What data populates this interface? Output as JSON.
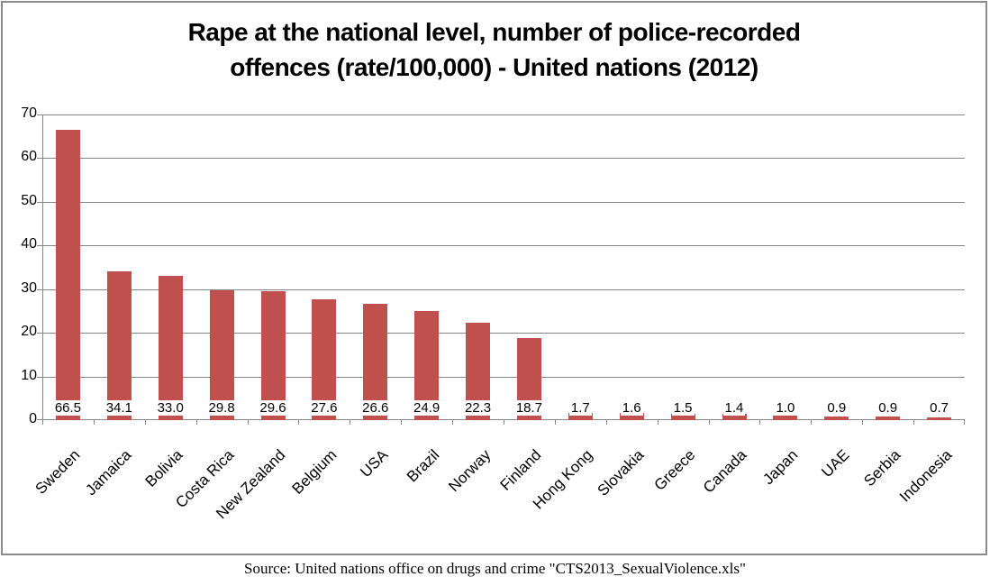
{
  "title": {
    "line1": "Rape at the national level, number of police-recorded",
    "line2": "offences (rate/100,000) - United nations (2012)"
  },
  "source": "Source: United nations office on drugs and crime \"CTS2013_SexualViolence.xls\"",
  "chart_data": {
    "type": "bar",
    "title": "Rape at the national level, number of police-recorded offences (rate/100,000) - United nations (2012)",
    "categories": [
      "Sweden",
      "Jamaica",
      "Bolivia",
      "Costa Rica",
      "New Zealand",
      "Belgium",
      "USA",
      "Brazil",
      "Norway",
      "Finland",
      "Hong Kong",
      "Slovakia",
      "Greece",
      "Canada",
      "Japan",
      "UAE",
      "Serbia",
      "Indonesia"
    ],
    "values": [
      66.5,
      34.1,
      33.0,
      29.8,
      29.6,
      27.6,
      26.6,
      24.9,
      22.3,
      18.7,
      1.7,
      1.6,
      1.5,
      1.4,
      1.0,
      0.9,
      0.9,
      0.7
    ],
    "value_labels": [
      "66.5",
      "34.1",
      "33.0",
      "29.8",
      "29.6",
      "27.6",
      "26.6",
      "24.9",
      "22.3",
      "18.7",
      "1.7",
      "1.6",
      "1.5",
      "1.4",
      "1.0",
      "0.9",
      "0.9",
      "0.7"
    ],
    "xlabel": "",
    "ylabel": "",
    "ylim": [
      0,
      70
    ],
    "yticks": [
      0,
      10,
      20,
      30,
      40,
      50,
      60,
      70
    ],
    "grid": true,
    "legend": false,
    "bar_color": "#C0504D",
    "grid_color": "#868686",
    "axis_color": "#868686",
    "frame_color": "#8A8A8A",
    "label_background": "#FFFFFF"
  }
}
